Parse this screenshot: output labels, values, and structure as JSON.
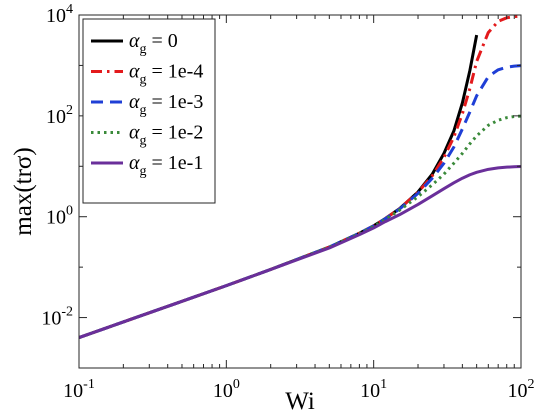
{
  "chart_data": {
    "type": "line",
    "xlabel": "Wi",
    "ylabel": "max(trσ)",
    "xscale": "log",
    "yscale": "log",
    "xlim": [
      0.1,
      100
    ],
    "ylim": [
      0.001,
      10000
    ],
    "grid": false,
    "legend_position": "top-left",
    "x_ticks": [
      {
        "value": 0.1,
        "base": "10",
        "exp": "-1"
      },
      {
        "value": 1,
        "base": "10",
        "exp": "0"
      },
      {
        "value": 10,
        "base": "10",
        "exp": "1"
      },
      {
        "value": 100,
        "base": "10",
        "exp": "2"
      }
    ],
    "y_ticks": [
      {
        "value": 0.01,
        "base": "10",
        "exp": "-2"
      },
      {
        "value": 1,
        "base": "10",
        "exp": "0"
      },
      {
        "value": 100,
        "base": "10",
        "exp": "2"
      },
      {
        "value": 10000,
        "base": "10",
        "exp": "4"
      }
    ],
    "x": [
      0.1,
      0.2,
      0.5,
      1,
      2,
      5,
      8,
      10,
      12,
      15,
      20,
      25,
      30,
      35,
      40,
      45,
      50,
      60,
      70,
      80,
      90,
      100
    ],
    "series": [
      {
        "legend_symbol": "α",
        "legend_sub": "g",
        "legend_value": " = 0",
        "color": "#000000",
        "dash": "solid",
        "values": [
          0.004,
          0.0082,
          0.021,
          0.043,
          0.09,
          0.25,
          0.47,
          0.66,
          0.92,
          1.45,
          3.1,
          7.0,
          18.0,
          50.0,
          180.0,
          800.0,
          4000.0,
          null,
          null,
          null,
          null,
          null
        ]
      },
      {
        "legend_symbol": "α",
        "legend_sub": "g",
        "legend_value": " = 1e-4",
        "color": "#e31a1c",
        "dash": "dashdot",
        "values": [
          0.004,
          0.0082,
          0.021,
          0.043,
          0.09,
          0.25,
          0.47,
          0.66,
          0.92,
          1.45,
          3.05,
          6.5,
          15.0,
          38.0,
          110.0,
          350.0,
          1200.0,
          4500.0,
          7500.0,
          8800.0,
          9300.0,
          9500.0
        ]
      },
      {
        "legend_symbol": "α",
        "legend_sub": "g",
        "legend_value": " = 1e-3",
        "color": "#1f3fd6",
        "dash": "dashed",
        "values": [
          0.004,
          0.0082,
          0.021,
          0.043,
          0.09,
          0.25,
          0.47,
          0.66,
          0.91,
          1.42,
          2.9,
          5.8,
          11.5,
          24.0,
          55.0,
          120.0,
          250.0,
          600.0,
          820.0,
          920.0,
          970.0,
          990.0
        ]
      },
      {
        "legend_symbol": "α",
        "legend_sub": "g",
        "legend_value": " = 1e-2",
        "color": "#3a8a3a",
        "dash": "dotted",
        "values": [
          0.004,
          0.0082,
          0.021,
          0.043,
          0.09,
          0.25,
          0.46,
          0.64,
          0.88,
          1.35,
          2.5,
          4.3,
          7.0,
          11.5,
          18.0,
          28.0,
          40.0,
          65.0,
          82.0,
          92.0,
          97.0,
          99.0
        ]
      },
      {
        "legend_symbol": "α",
        "legend_sub": "g",
        "legend_value": " = 1e-1",
        "color": "#6a2f9a",
        "dash": "solid",
        "values": [
          0.004,
          0.0082,
          0.021,
          0.043,
          0.09,
          0.24,
          0.44,
          0.6,
          0.8,
          1.1,
          1.75,
          2.6,
          3.6,
          4.7,
          5.8,
          6.8,
          7.6,
          8.7,
          9.3,
          9.6,
          9.8,
          9.9
        ]
      }
    ]
  }
}
